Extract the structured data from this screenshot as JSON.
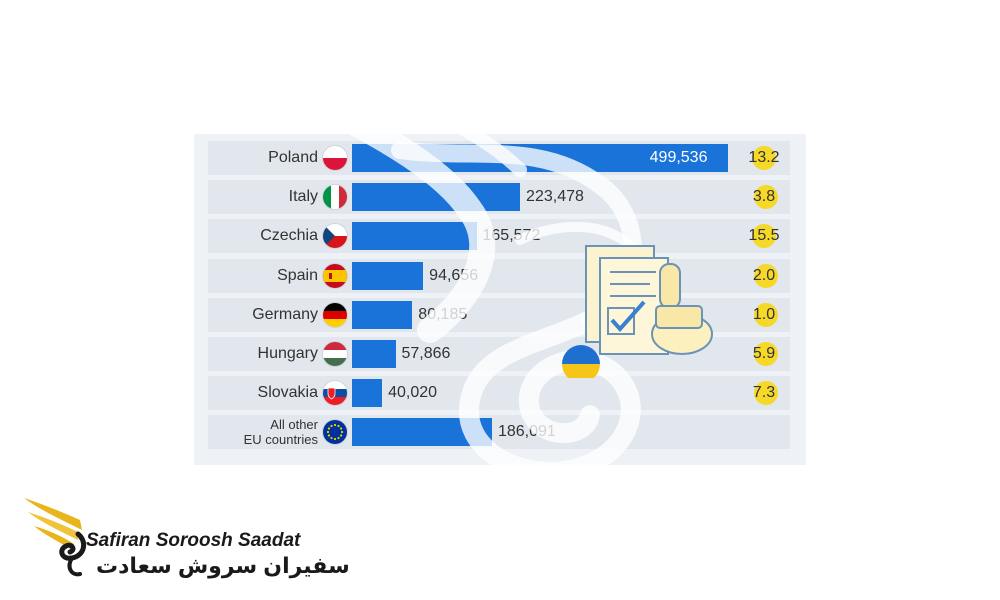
{
  "chart_data": {
    "type": "bar",
    "orientation": "horizontal",
    "categories": [
      "Poland",
      "Italy",
      "Czechia",
      "Spain",
      "Germany",
      "Hungary",
      "Slovakia",
      "All other EU countries"
    ],
    "category_lines": [
      [
        "Poland"
      ],
      [
        "Italy"
      ],
      [
        "Czechia"
      ],
      [
        "Spain"
      ],
      [
        "Germany"
      ],
      [
        "Hungary"
      ],
      [
        "Slovakia"
      ],
      [
        "All other",
        "EU countries"
      ]
    ],
    "values": [
      499536,
      223478,
      165572,
      94656,
      80185,
      57866,
      40020,
      186091
    ],
    "value_labels": [
      "499,536",
      "223,478",
      "165,572",
      "94,656",
      "80,185",
      "57,866",
      "40,020",
      "186,091"
    ],
    "secondary_values": [
      13.2,
      3.8,
      15.5,
      2.0,
      1.0,
      5.9,
      7.3,
      null
    ],
    "secondary_labels": [
      "13.2",
      "3.8",
      "15.5",
      "2.0",
      "1.0",
      "5.9",
      "7.3",
      ""
    ],
    "flags": [
      "poland-flag",
      "italy-flag",
      "czechia-flag",
      "spain-flag",
      "germany-flag",
      "hungary-flag",
      "slovakia-flag",
      "eu-flag"
    ],
    "xlim": [
      0,
      500000
    ],
    "bar_color": "#1a73d9",
    "dot_color": "#f6d928",
    "title": "",
    "xlabel": "",
    "ylabel": ""
  },
  "brand": {
    "name_en": "Safiran Soroosh Saadat",
    "name_fa": "سفیران سروش سعادت",
    "logo_icon": "golden-wing-swan-logo",
    "colors": {
      "gold": "#e8b51c",
      "dark": "#1a1a1a"
    }
  },
  "illustration": {
    "icon": "approved-document-stamp-icon",
    "flag_icon": "ukraine-flag"
  }
}
